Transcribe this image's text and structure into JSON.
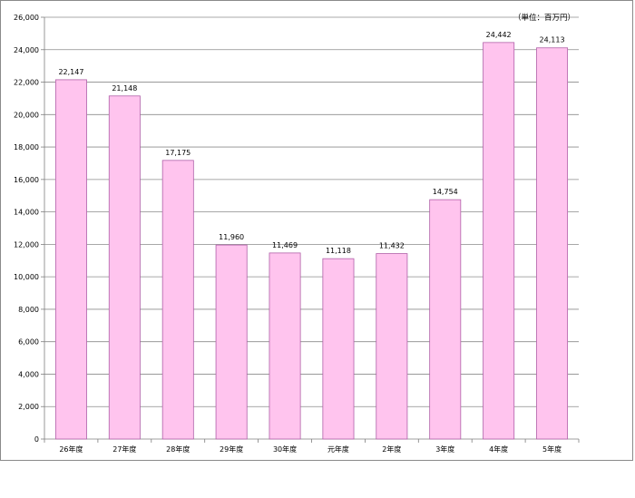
{
  "chart_data": {
    "type": "bar",
    "title": "",
    "xlabel": "",
    "ylabel": "",
    "unit_label": "（単位：百万円）",
    "categories": [
      "26年度",
      "27年度",
      "28年度",
      "29年度",
      "30年度",
      "元年度",
      "2年度",
      "3年度",
      "4年度",
      "5年度"
    ],
    "values": [
      22147,
      21148,
      17175,
      11960,
      11469,
      11118,
      11432,
      14754,
      24442,
      24113
    ],
    "value_labels": [
      "22,147",
      "21,148",
      "17,175",
      "11,960",
      "11,469",
      "11,118",
      "11,432",
      "14,754",
      "24,442",
      "24,113"
    ],
    "ylim": [
      0,
      26000
    ],
    "y_ticks": [
      0,
      2000,
      4000,
      6000,
      8000,
      10000,
      12000,
      14000,
      16000,
      18000,
      20000,
      22000,
      24000,
      26000
    ],
    "y_tick_labels": [
      "0",
      "2,000",
      "4,000",
      "6,000",
      "8,000",
      "10,000",
      "12,000",
      "14,000",
      "16,000",
      "18,000",
      "20,000",
      "22,000",
      "24,000",
      "26,000"
    ],
    "grid": true,
    "legend": "none",
    "colors": {
      "bar_fill": "#ffc4ee",
      "bar_stroke": "#b060a8",
      "grid": "#8c8c8c",
      "axis": "#7f7f7f"
    }
  }
}
